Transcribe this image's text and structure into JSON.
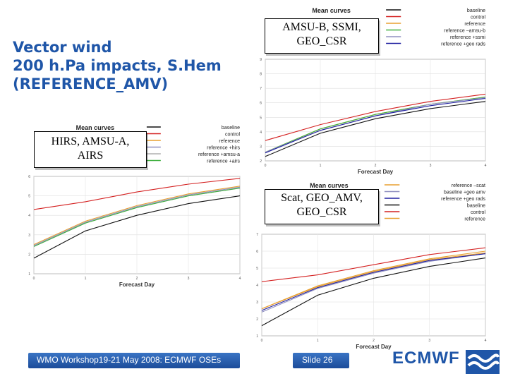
{
  "slide": {
    "title_lines": [
      "Vector wind",
      "200 h.Pa impacts, S.Hem",
      "(REFERENCE_AMV)"
    ],
    "footer_text": "WMO Workshop19-21 May 2008: ECMWF OSEs",
    "slide_number": "Slide 26",
    "brand": "ECMWF"
  },
  "callouts": {
    "top_right": [
      "AMSU-B, SSMI,",
      "GEO_CSR"
    ],
    "left": [
      "HIRS, AMSU-A,",
      "AIRS"
    ],
    "bottom_right": [
      "Scat, GEO_AMV,",
      "GEO_CSR"
    ]
  },
  "chart_data": [
    {
      "id": "chart-amsub",
      "type": "line",
      "title": "Mean curves",
      "xlabel": "Forecast Day",
      "ylabel": "",
      "x": [
        0,
        1,
        2,
        3,
        4
      ],
      "xticks": [
        "0",
        "1",
        "2",
        "3",
        "4"
      ],
      "ylim": [
        2,
        9
      ],
      "yticks": [
        "2",
        "3",
        "4",
        "5",
        "6",
        "7",
        "8",
        "9"
      ],
      "grid": true,
      "legend_position": "top-right",
      "series": [
        {
          "name": "baseline",
          "color": "#111111",
          "values": [
            2.3,
            3.9,
            4.9,
            5.6,
            6.1
          ]
        },
        {
          "name": "control",
          "color": "#d42020",
          "values": [
            3.4,
            4.5,
            5.4,
            6.1,
            6.6
          ]
        },
        {
          "name": "reference",
          "color": "#e8a030",
          "values": [
            2.6,
            4.2,
            5.2,
            5.9,
            6.4
          ]
        },
        {
          "name": "reference –amsu-b",
          "color": "#40b040",
          "values": [
            2.6,
            4.2,
            5.2,
            5.9,
            6.4
          ]
        },
        {
          "name": "reference +ssmi",
          "color": "#9090c0",
          "values": [
            2.6,
            4.1,
            5.1,
            5.9,
            6.35
          ]
        },
        {
          "name": "reference +geo rads",
          "color": "#2020a0",
          "values": [
            2.55,
            4.1,
            5.1,
            5.8,
            6.3
          ]
        }
      ]
    },
    {
      "id": "chart-hirs",
      "type": "line",
      "title": "Mean curves",
      "xlabel": "Forecast Day",
      "ylabel": "",
      "x": [
        0,
        1,
        2,
        3,
        4
      ],
      "xticks": [
        "0",
        "1",
        "2",
        "3",
        "4"
      ],
      "ylim": [
        1,
        6
      ],
      "yticks": [
        "1",
        "2",
        "3",
        "4",
        "5",
        "6"
      ],
      "grid": true,
      "legend_position": "top-right",
      "series": [
        {
          "name": "baseline",
          "color": "#111111",
          "values": [
            1.8,
            3.2,
            4.0,
            4.6,
            5.0
          ]
        },
        {
          "name": "control",
          "color": "#d42020",
          "values": [
            4.3,
            4.7,
            5.2,
            5.6,
            5.9
          ]
        },
        {
          "name": "reference",
          "color": "#e8a030",
          "values": [
            2.5,
            3.7,
            4.5,
            5.1,
            5.5
          ]
        },
        {
          "name": "reference +hirs",
          "color": "#9090c0",
          "values": [
            2.45,
            3.65,
            4.45,
            5.05,
            5.45
          ]
        },
        {
          "name": "reference +amsu-a",
          "color": "#b0b0b0",
          "values": [
            2.4,
            3.6,
            4.4,
            5.0,
            5.4
          ]
        },
        {
          "name": "reference +airs",
          "color": "#40b040",
          "values": [
            2.4,
            3.6,
            4.4,
            5.0,
            5.4
          ]
        }
      ]
    },
    {
      "id": "chart-scat",
      "type": "line",
      "title": "Mean curves",
      "xlabel": "Forecast Day",
      "ylabel": "",
      "x": [
        0,
        1,
        2,
        3,
        4
      ],
      "xticks": [
        "0",
        "1",
        "2",
        "3",
        "4"
      ],
      "ylim": [
        1,
        7
      ],
      "yticks": [
        "1",
        "2",
        "3",
        "4",
        "5",
        "6",
        "7"
      ],
      "grid": true,
      "legend_position": "top-right",
      "series": [
        {
          "name": "reference –scat",
          "color": "#e8a030",
          "values": [
            2.6,
            3.9,
            4.8,
            5.5,
            5.9
          ]
        },
        {
          "name": "baseline +geo amv",
          "color": "#9090c0",
          "values": [
            2.4,
            3.8,
            4.7,
            5.4,
            5.85
          ]
        },
        {
          "name": "reference +geo rads",
          "color": "#2020a0",
          "values": [
            2.5,
            3.85,
            4.75,
            5.45,
            5.85
          ]
        },
        {
          "name": "baseline",
          "color": "#111111",
          "values": [
            1.6,
            3.4,
            4.4,
            5.1,
            5.6
          ]
        },
        {
          "name": "control",
          "color": "#d42020",
          "values": [
            4.2,
            4.6,
            5.2,
            5.8,
            6.2
          ]
        },
        {
          "name": "reference",
          "color": "#e8a030",
          "values": [
            2.6,
            3.95,
            4.85,
            5.55,
            6.0
          ]
        }
      ]
    }
  ]
}
